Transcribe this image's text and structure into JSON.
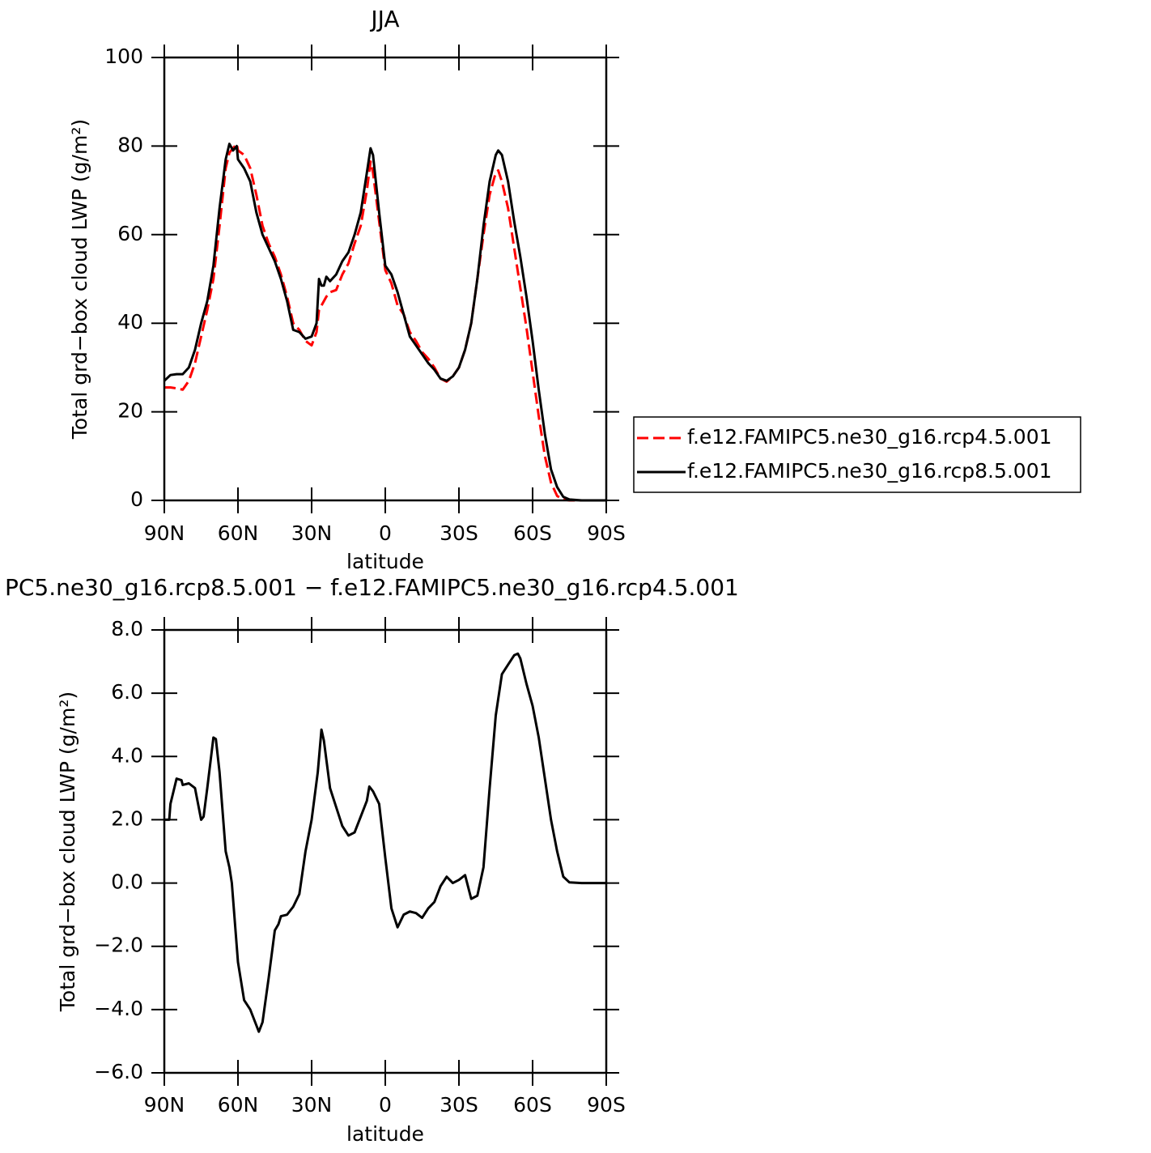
{
  "chart_data": [
    {
      "type": "line",
      "title": "JJA",
      "xlabel": "latitude",
      "ylabel": "Total grd−box cloud LWP (g/m²)",
      "xlim": [
        90,
        -90
      ],
      "ylim": [
        0,
        100
      ],
      "xticks": [
        {
          "value": 90,
          "label": "90N"
        },
        {
          "value": 60,
          "label": "60N"
        },
        {
          "value": 30,
          "label": "30N"
        },
        0,
        {
          "value": -30,
          "label": "30S"
        },
        {
          "value": -60,
          "label": "60S"
        },
        {
          "value": -90,
          "label": "90S"
        }
      ],
      "yticks": [
        0,
        20,
        40,
        60,
        80,
        100
      ],
      "legend": "right",
      "x": [
        90,
        87.5,
        85,
        82.5,
        80,
        77.5,
        75,
        72.5,
        70,
        67.5,
        65,
        63.5,
        62,
        60.5,
        60,
        57.5,
        55,
        52.5,
        50,
        47.5,
        45,
        42.5,
        40,
        37.5,
        35,
        32.5,
        30,
        28,
        27,
        26,
        25,
        24,
        22.5,
        20,
        17.5,
        15,
        12.5,
        10,
        7.5,
        6,
        5,
        2.5,
        0,
        -2.5,
        -5,
        -7.5,
        -10,
        -12.5,
        -15,
        -17.5,
        -20,
        -22.5,
        -25,
        -27.5,
        -30,
        -32.5,
        -35,
        -37.5,
        -40,
        -42.5,
        -45,
        -46,
        -47.5,
        -50,
        -52.5,
        -55,
        -57.5,
        -60,
        -62.5,
        -65,
        -67.5,
        -70,
        -72.5,
        -75,
        -80,
        -85,
        -90
      ],
      "series": [
        {
          "name": "f.e12.FAMIPC5.ne30_g16.rcp4.5.001",
          "color": "#ff0000",
          "dashed": true,
          "values": [
            25.5,
            25.5,
            25.3,
            25,
            27,
            31,
            37,
            43,
            50,
            62,
            75,
            78.5,
            79.5,
            80.5,
            79,
            78,
            75,
            69,
            62,
            58,
            55,
            51,
            46,
            40,
            38.5,
            36,
            35,
            38,
            43,
            44,
            45,
            46,
            47,
            47.5,
            51,
            53.5,
            58,
            62,
            70,
            76.5,
            74,
            63,
            52,
            49,
            44,
            42,
            38,
            36,
            33.5,
            32,
            30,
            27.5,
            26.8,
            28,
            30,
            34,
            40,
            50,
            60,
            69,
            74,
            74.5,
            72,
            66,
            57,
            48,
            39,
            29,
            19,
            10,
            4,
            1,
            0.2,
            0,
            0,
            0,
            0
          ]
        },
        {
          "name": "f.e12.FAMIPC5.ne30_g16.rcp8.5.001",
          "color": "#000000",
          "dashed": false,
          "values": [
            27,
            28.3,
            28.5,
            28.5,
            30,
            34,
            40,
            45,
            53,
            66,
            77,
            80.5,
            79,
            80,
            77,
            75,
            72,
            65,
            60,
            57,
            54,
            50,
            45,
            38.5,
            38,
            36.5,
            37,
            40,
            50,
            48.5,
            48.5,
            50.5,
            49.5,
            51,
            54,
            56,
            60,
            65,
            74,
            79.5,
            78,
            65,
            53,
            51,
            47,
            42,
            37,
            35,
            33,
            31,
            29.5,
            27.5,
            27,
            28,
            30,
            34,
            40,
            50,
            62,
            72,
            78,
            79,
            78,
            72,
            63,
            55,
            46,
            36,
            25,
            15,
            7,
            3,
            0.8,
            0.2,
            0,
            0,
            0
          ]
        }
      ]
    },
    {
      "type": "line",
      "title": "PC5.ne30_g16.rcp8.5.001 − f.e12.FAMIPC5.ne30_g16.rcp4.5.001",
      "xlabel": "latitude",
      "ylabel": "Total grd−box cloud LWP (g/m²)",
      "xlim": [
        90,
        -90
      ],
      "ylim": [
        -6,
        8
      ],
      "xticks": [
        {
          "value": 90,
          "label": "90N"
        },
        {
          "value": 60,
          "label": "60N"
        },
        {
          "value": 30,
          "label": "30N"
        },
        0,
        {
          "value": -30,
          "label": "30S"
        },
        {
          "value": -60,
          "label": "60S"
        },
        {
          "value": -90,
          "label": "90S"
        }
      ],
      "yticks": [
        {
          "value": -6,
          "label": "−6.0"
        },
        {
          "value": -4,
          "label": "−4.0"
        },
        {
          "value": -2,
          "label": "−2.0"
        },
        {
          "value": 0,
          "label": "0.0"
        },
        {
          "value": 2,
          "label": "2.0"
        },
        {
          "value": 4,
          "label": "4.0"
        },
        {
          "value": 6,
          "label": "6.0"
        },
        {
          "value": 8,
          "label": "8.0"
        }
      ],
      "x": [
        90,
        88,
        87.5,
        85,
        83,
        82.5,
        80,
        77.5,
        75,
        74,
        72.5,
        70,
        69,
        67.5,
        65,
        63.5,
        62.5,
        60,
        57.5,
        55,
        52.5,
        51.5,
        50,
        47.5,
        45,
        43.5,
        42.5,
        40,
        37.5,
        35,
        32.5,
        30,
        27.5,
        26,
        25,
        24,
        22.5,
        20,
        17.5,
        15,
        12.5,
        10,
        7.5,
        6.5,
        5,
        2.5,
        0,
        -2.5,
        -5,
        -7.5,
        -10,
        -12.5,
        -15,
        -17.5,
        -20,
        -22.5,
        -25,
        -27.5,
        -30,
        -32.5,
        -35,
        -37.5,
        -40,
        -42.5,
        -45,
        -47.5,
        -50,
        -52.5,
        -54,
        -55,
        -57.5,
        -60,
        -62.5,
        -65,
        -67.5,
        -70,
        -72.5,
        -75,
        -80,
        -85,
        -90
      ],
      "series": [
        {
          "color": "#000000",
          "dashed": false,
          "values": [
            2.0,
            2.0,
            2.5,
            3.3,
            3.25,
            3.1,
            3.15,
            3.0,
            2.0,
            2.1,
            3.0,
            4.6,
            4.55,
            3.5,
            1.0,
            0.5,
            0,
            -2.5,
            -3.7,
            -4.0,
            -4.5,
            -4.7,
            -4.4,
            -3.0,
            -1.5,
            -1.3,
            -1.05,
            -1.0,
            -0.75,
            -0.35,
            1.0,
            2.0,
            3.5,
            4.85,
            4.5,
            3.9,
            3.0,
            2.4,
            1.8,
            1.5,
            1.6,
            2.1,
            2.6,
            3.05,
            2.9,
            2.5,
            0.8,
            -0.8,
            -1.4,
            -1.0,
            -0.9,
            -0.95,
            -1.1,
            -0.8,
            -0.6,
            -0.1,
            0.2,
            0.0,
            0.1,
            0.25,
            -0.5,
            -0.4,
            0.5,
            3.0,
            5.3,
            6.6,
            6.9,
            7.2,
            7.25,
            7.1,
            6.3,
            5.6,
            4.6,
            3.3,
            2.0,
            1.0,
            0.2,
            0.02,
            0,
            0,
            0
          ]
        }
      ]
    }
  ]
}
